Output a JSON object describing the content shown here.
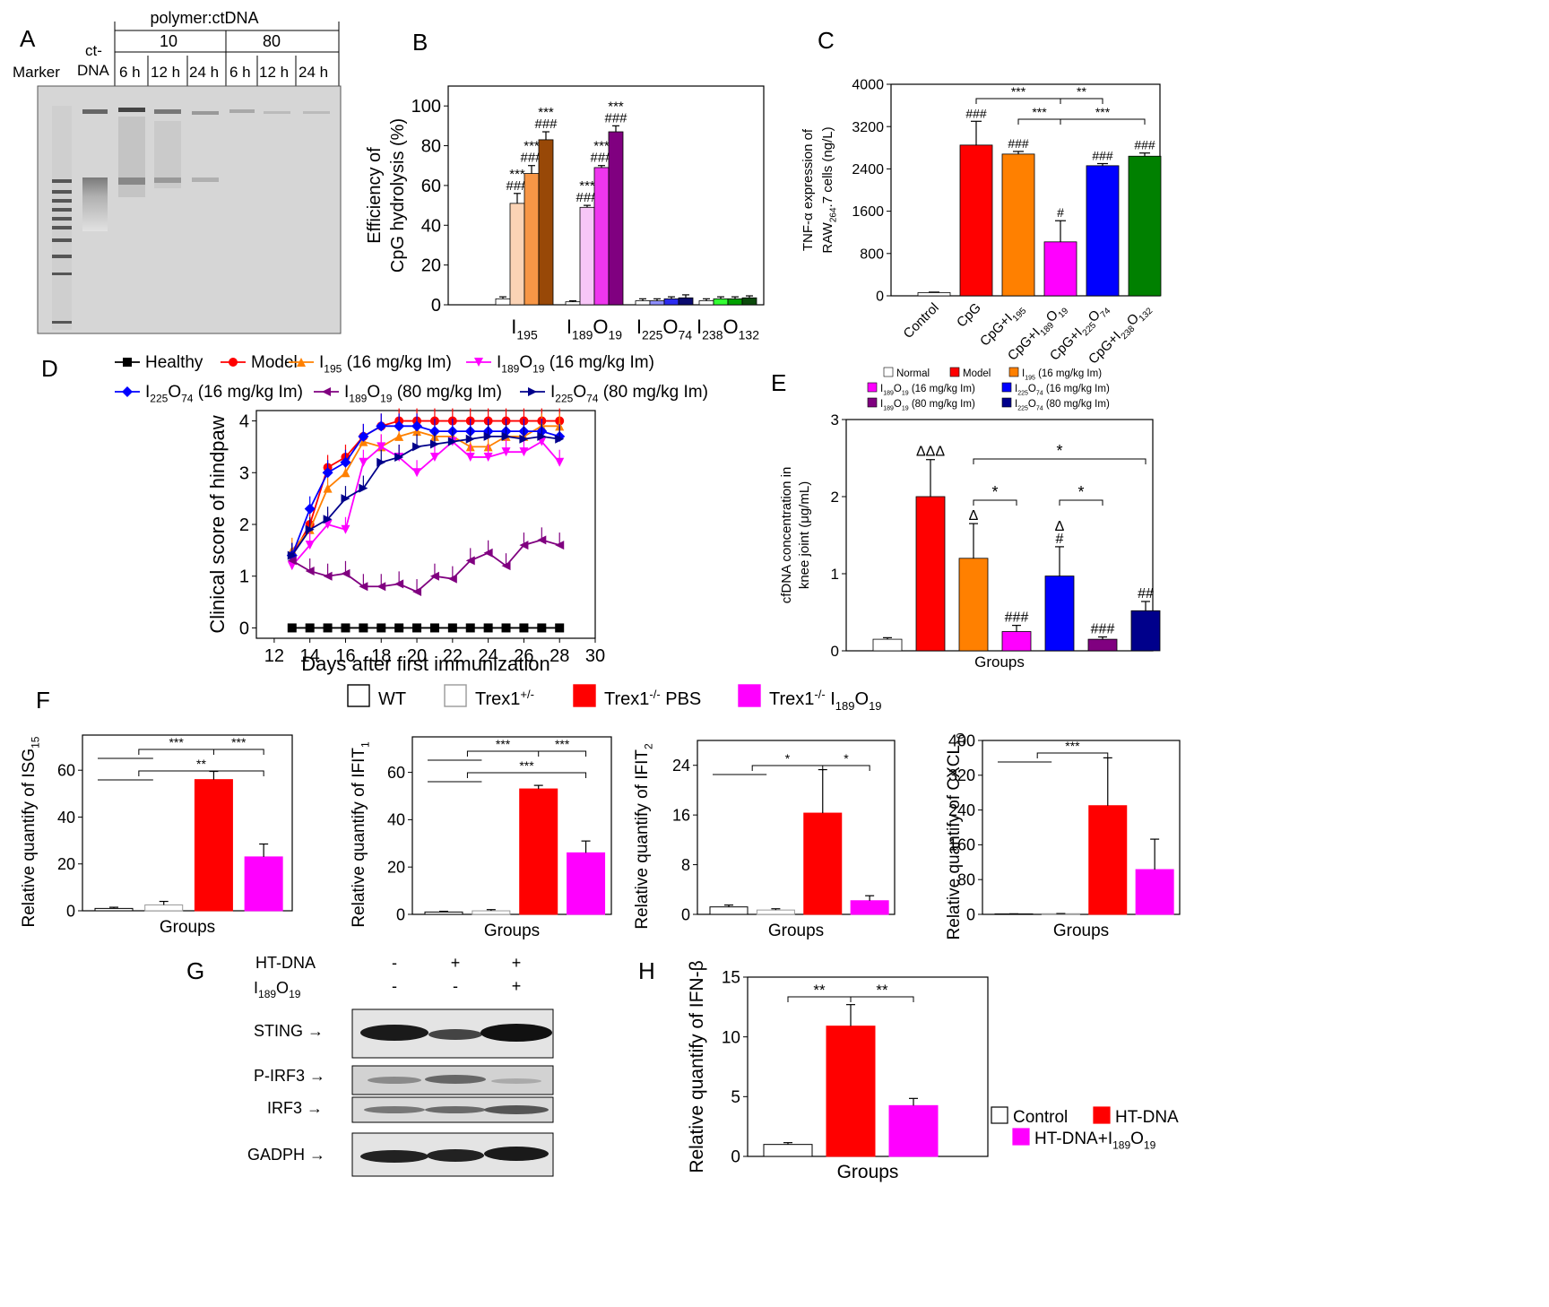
{
  "panels": {
    "A": {
      "letter": "A",
      "header": "polymer:ctDNA",
      "ratio_labels": [
        "10",
        "80"
      ],
      "lanes": [
        "Marker",
        "ct-DNA",
        "6 h",
        "12 h",
        "24 h",
        "6 h",
        "12 h",
        "24 h"
      ],
      "marker_label": "Marker",
      "ctdna_label_1": "ct-",
      "ctdna_label_2": "DNA"
    },
    "B": {
      "letter": "B"
    },
    "C": {
      "letter": "C"
    },
    "D": {
      "letter": "D"
    },
    "E": {
      "letter": "E"
    },
    "F": {
      "letter": "F"
    },
    "G": {
      "letter": "G",
      "treatments": [
        {
          "label": "HT-DNA",
          "values": [
            "-",
            "+",
            "+"
          ]
        },
        {
          "label": "I189O19",
          "values": [
            "-",
            "-",
            "+"
          ]
        }
      ],
      "blots": [
        "STING →",
        "P-IRF3 →",
        "IRF3 →",
        "GADPH →"
      ]
    },
    "H": {
      "letter": "H"
    }
  },
  "chart_data": [
    {
      "panel": "B",
      "type": "bar",
      "ylabel": "Efficiency of CpG hydrolysis (%)",
      "ylim": [
        0,
        110
      ],
      "yticks": [
        0,
        20,
        40,
        60,
        80,
        100
      ],
      "categories": [
        "I195",
        "I189O19",
        "I225O74",
        "I238O132"
      ],
      "series": [
        {
          "group": "I195",
          "values": [
            3,
            51,
            66,
            83
          ],
          "errors": [
            1,
            5,
            4,
            4
          ],
          "colors": [
            "#ffffff",
            "#fbd3b5",
            "#f79646",
            "#984807"
          ],
          "annotations": [
            "",
            "***\n###",
            "***\n###",
            "***\n###"
          ]
        },
        {
          "group": "I189O19",
          "values": [
            1.5,
            49,
            69,
            87
          ],
          "errors": [
            0.5,
            1,
            1,
            3
          ],
          "colors": [
            "#ffffff",
            "#f7c6f7",
            "#ee36ee",
            "#800080"
          ],
          "annotations": [
            "",
            "***\n###",
            "***\n###",
            "***\n###"
          ]
        },
        {
          "group": "I225O74",
          "values": [
            2,
            2,
            3,
            3.5
          ],
          "errors": [
            1,
            1,
            1,
            1.5
          ],
          "colors": [
            "#ffffff",
            "#8f8fff",
            "#2c2cf0",
            "#0b0b70"
          ],
          "annotations": [
            "",
            "",
            "",
            ""
          ]
        },
        {
          "group": "I238O132",
          "values": [
            2,
            3,
            3,
            3.5
          ],
          "errors": [
            1,
            1,
            1,
            1
          ],
          "colors": [
            "#ffffff",
            "#33ff33",
            "#00a000",
            "#0b4a0b"
          ],
          "annotations": [
            "",
            "",
            "",
            ""
          ]
        }
      ]
    },
    {
      "panel": "C",
      "type": "bar",
      "ylabel_1": "TNF-α expression of",
      "ylabel_2": "RAW264.7 cells (ng/L)",
      "ylim": [
        0,
        4000
      ],
      "yticks": [
        0,
        800,
        1600,
        2400,
        3200,
        4000
      ],
      "categories": [
        "Control",
        "CpG",
        "CpG+I195",
        "CpG+I189O19",
        "CpG+I225O74",
        "CpG+I238O132"
      ],
      "values": [
        60,
        2850,
        2680,
        1020,
        2460,
        2640
      ],
      "errors": [
        10,
        450,
        50,
        400,
        40,
        60
      ],
      "colors": [
        "#ffffff",
        "#ff0000",
        "#ff8000",
        "#ff00ff",
        "#0000ff",
        "#008000"
      ],
      "annotations": [
        "",
        "###",
        "###",
        "#",
        "###",
        "###"
      ],
      "significance": [
        "***",
        "**",
        "***",
        "***"
      ]
    },
    {
      "panel": "D",
      "type": "line",
      "xlabel": "Days after first immunization",
      "ylabel": "Clinical score of hindpaw",
      "xlim": [
        11,
        30
      ],
      "ylim": [
        -0.2,
        4.2
      ],
      "xticks": [
        12,
        14,
        16,
        18,
        20,
        22,
        24,
        26,
        28,
        30
      ],
      "yticks": [
        0,
        1,
        2,
        3,
        4
      ],
      "x": [
        13,
        14,
        15,
        16,
        17,
        18,
        19,
        20,
        21,
        22,
        23,
        24,
        25,
        26,
        27,
        28
      ],
      "series": [
        {
          "name": "Healthy",
          "color": "#000000",
          "marker": "square",
          "values": [
            0,
            0,
            0,
            0,
            0,
            0,
            0,
            0,
            0,
            0,
            0,
            0,
            0,
            0,
            0,
            0
          ]
        },
        {
          "name": "Model",
          "color": "#ff0000",
          "marker": "circle",
          "values": [
            1.4,
            2.0,
            3.1,
            3.3,
            3.7,
            3.9,
            4.0,
            4.0,
            4.0,
            4.0,
            4.0,
            4.0,
            4.0,
            4.0,
            4.0,
            4.0
          ]
        },
        {
          "name": "I195 (16 mg/kg Im)",
          "color": "#ff8000",
          "marker": "triangle-up",
          "values": [
            1.5,
            1.9,
            2.7,
            3.0,
            3.6,
            3.5,
            3.7,
            3.8,
            3.7,
            3.7,
            3.5,
            3.5,
            3.7,
            3.7,
            3.9,
            3.9
          ]
        },
        {
          "name": "I189O19 (16 mg/kg Im)",
          "color": "#ff00ff",
          "marker": "triangle-down",
          "values": [
            1.2,
            1.6,
            2.0,
            1.9,
            3.2,
            3.5,
            3.3,
            3.0,
            3.3,
            3.6,
            3.3,
            3.3,
            3.4,
            3.4,
            3.6,
            3.2
          ]
        },
        {
          "name": "I225O74 (16 mg/kg Im)",
          "color": "#0000ff",
          "marker": "diamond",
          "values": [
            1.4,
            2.3,
            3.0,
            3.2,
            3.7,
            3.9,
            3.9,
            3.9,
            3.8,
            3.8,
            3.8,
            3.8,
            3.8,
            3.8,
            3.8,
            3.7
          ]
        },
        {
          "name": "I189O19 (80 mg/kg Im)",
          "color": "#800080",
          "marker": "triangle-left",
          "values": [
            1.3,
            1.1,
            1.0,
            1.05,
            0.8,
            0.8,
            0.85,
            0.7,
            1.0,
            0.95,
            1.3,
            1.45,
            1.2,
            1.6,
            1.7,
            1.6
          ]
        },
        {
          "name": "I225O74 (80 mg/kg Im)",
          "color": "#00008b",
          "marker": "triangle-right",
          "values": [
            1.4,
            1.9,
            2.1,
            2.5,
            2.7,
            3.2,
            3.3,
            3.5,
            3.55,
            3.6,
            3.65,
            3.7,
            3.7,
            3.65,
            3.7,
            3.65
          ]
        }
      ]
    },
    {
      "panel": "E",
      "type": "bar",
      "xlabel": "Groups",
      "ylabel_1": "cfDNA concentration in",
      "ylabel_2": "knee joint (μg/mL)",
      "ylim": [
        0,
        3
      ],
      "yticks": [
        0,
        1,
        2,
        3
      ],
      "legend": [
        "Normal",
        "Model",
        "I195 (16 mg/kg Im)",
        "I189O19 (16 mg/kg Im)",
        "I225O74 (16 mg/kg Im)",
        "I189O19 (80 mg/kg Im)",
        "I225O74 (80 mg/kg Im)"
      ],
      "values": [
        0.15,
        2.0,
        1.2,
        0.25,
        0.97,
        0.15,
        0.52
      ],
      "errors": [
        0.02,
        0.48,
        0.45,
        0.08,
        0.38,
        0.03,
        0.12
      ],
      "colors": [
        "#ffffff",
        "#ff0000",
        "#ff8000",
        "#ff00ff",
        "#0000ff",
        "#800080",
        "#00008b"
      ],
      "annotations": [
        "",
        "ΔΔΔ",
        "Δ",
        "###",
        "Δ\n#",
        "###",
        "##"
      ],
      "significance": [
        "*",
        "*",
        "*"
      ]
    },
    {
      "panel": "F",
      "type": "bar",
      "legend": [
        "WT",
        "Trex1+/-",
        "Trex1-/- PBS",
        "Trex1-/- I189O19"
      ],
      "colors": [
        "#ffffff",
        "#ffffff",
        "#ff0000",
        "#ff00ff"
      ],
      "xlabel": "Groups",
      "subplots": [
        {
          "ylabel": "Relative quantify of ISG15",
          "ylim": [
            0,
            75
          ],
          "yticks": [
            0,
            20,
            40,
            60
          ],
          "values": [
            1,
            2.5,
            56,
            23
          ],
          "errors": [
            0.5,
            1.5,
            3.5,
            5.5
          ],
          "significance": [
            "***",
            "***",
            "**"
          ]
        },
        {
          "ylabel": "Relative quantify of IFIT1",
          "ylim": [
            0,
            75
          ],
          "yticks": [
            0,
            20,
            40,
            60
          ],
          "values": [
            1,
            1.5,
            53,
            26
          ],
          "errors": [
            0.3,
            0.5,
            1.5,
            5
          ],
          "significance": [
            "***",
            "***",
            "***"
          ]
        },
        {
          "ylabel": "Relative quantify of IFIT2",
          "ylim": [
            0,
            28
          ],
          "yticks": [
            0,
            8,
            16,
            24
          ],
          "values": [
            1.2,
            0.7,
            16.3,
            2.2
          ],
          "errors": [
            0.3,
            0.2,
            7,
            0.8
          ],
          "significance": [
            "*",
            "*"
          ]
        },
        {
          "ylabel": "Relative quantify of CXCL10",
          "ylim": [
            0,
            400
          ],
          "yticks": [
            0,
            80,
            160,
            240,
            320,
            400
          ],
          "values": [
            1,
            1.5,
            250,
            103
          ],
          "errors": [
            0.3,
            0.4,
            110,
            70
          ],
          "significance": [
            "***"
          ]
        }
      ]
    },
    {
      "panel": "H",
      "type": "bar",
      "xlabel": "Groups",
      "ylabel": "Relative quantify of IFN-β",
      "ylim": [
        0,
        15
      ],
      "yticks": [
        0,
        5,
        10,
        15
      ],
      "legend": [
        "Control",
        "HT-DNA",
        "HT-DNA+I189O19"
      ],
      "values": [
        1.0,
        10.9,
        4.25
      ],
      "errors": [
        0.15,
        1.8,
        0.6
      ],
      "colors": [
        "#ffffff",
        "#ff0000",
        "#ff00ff"
      ],
      "significance": [
        "**",
        "**"
      ]
    }
  ]
}
